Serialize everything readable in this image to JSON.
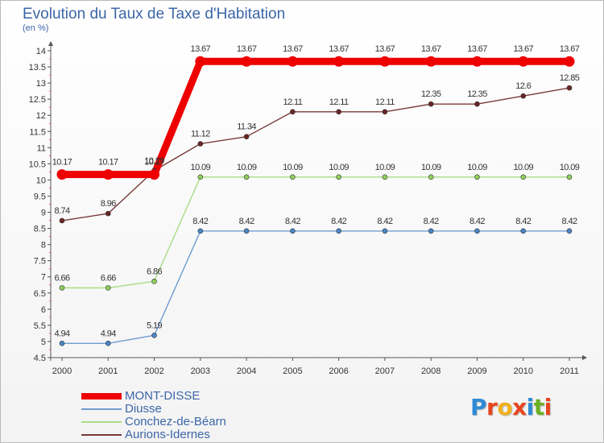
{
  "header": {
    "title": "Evolution du Taux de Taxe d'Habitation",
    "subtitle": "(en %)"
  },
  "brand": {
    "text": "Proxiti",
    "letter_colors": [
      "#2e8bd6",
      "#e8451e",
      "#f2b21c",
      "#e8451e",
      "#2e8bd6",
      "#6ab023",
      "#e8451e"
    ]
  },
  "chart_data": {
    "type": "line",
    "x": [
      "2000",
      "2001",
      "2002",
      "2003",
      "2004",
      "2005",
      "2006",
      "2007",
      "2008",
      "2009",
      "2010",
      "2011"
    ],
    "ylim": [
      4.5,
      14
    ],
    "yticks": [
      "4.5",
      "5",
      "5.5",
      "6",
      "6.5",
      "7",
      "7.5",
      "8",
      "8.5",
      "9",
      "9.5",
      "10",
      "10.5",
      "11",
      "11.5",
      "12",
      "12.5",
      "13",
      "13.5",
      "14"
    ],
    "grid": false,
    "legend_position": "bottom-left",
    "series": [
      {
        "name": "MONT-DISSE",
        "color": "#ee0000",
        "style": "thick",
        "values": [
          10.17,
          10.17,
          10.17,
          13.67,
          13.67,
          13.67,
          13.67,
          13.67,
          13.67,
          13.67,
          13.67,
          13.67
        ],
        "labels": [
          "10.17",
          "10.17",
          "10.17",
          "13.67",
          "13.67",
          "13.67",
          "13.67",
          "13.67",
          "13.67",
          "13.67",
          "13.67",
          "13.67"
        ]
      },
      {
        "name": "Diusse",
        "color": "#6f9cd0",
        "marker": "#4a86c5",
        "values": [
          4.94,
          4.94,
          5.19,
          8.42,
          8.42,
          8.42,
          8.42,
          8.42,
          8.42,
          8.42,
          8.42,
          8.42
        ],
        "labels": [
          "4.94",
          "4.94",
          "5.19",
          "8.42",
          "8.42",
          "8.42",
          "8.42",
          "8.42",
          "8.42",
          "8.42",
          "8.42",
          "8.42"
        ]
      },
      {
        "name": "Conchez-de-Béarn",
        "color": "#a9dc84",
        "marker": "#8fce5c",
        "values": [
          6.66,
          6.66,
          6.86,
          10.09,
          10.09,
          10.09,
          10.09,
          10.09,
          10.09,
          10.09,
          10.09,
          10.09
        ],
        "labels": [
          "6.66",
          "6.66",
          "6.86",
          "10.09",
          "10.09",
          "10.09",
          "10.09",
          "10.09",
          "10.09",
          "10.09",
          "10.09",
          "10.09"
        ]
      },
      {
        "name": "Aurions-Idernes",
        "color": "#7a3a3a",
        "marker": "#6b2424",
        "values": [
          8.74,
          8.96,
          10.29,
          11.12,
          11.34,
          12.11,
          12.11,
          12.11,
          12.35,
          12.35,
          12.6,
          12.85
        ],
        "labels": [
          "8.74",
          "8.96",
          "10.29",
          "11.12",
          "11.34",
          "12.11",
          "12.11",
          "12.11",
          "12.35",
          "12.35",
          "12.6",
          "12.85"
        ]
      }
    ]
  }
}
